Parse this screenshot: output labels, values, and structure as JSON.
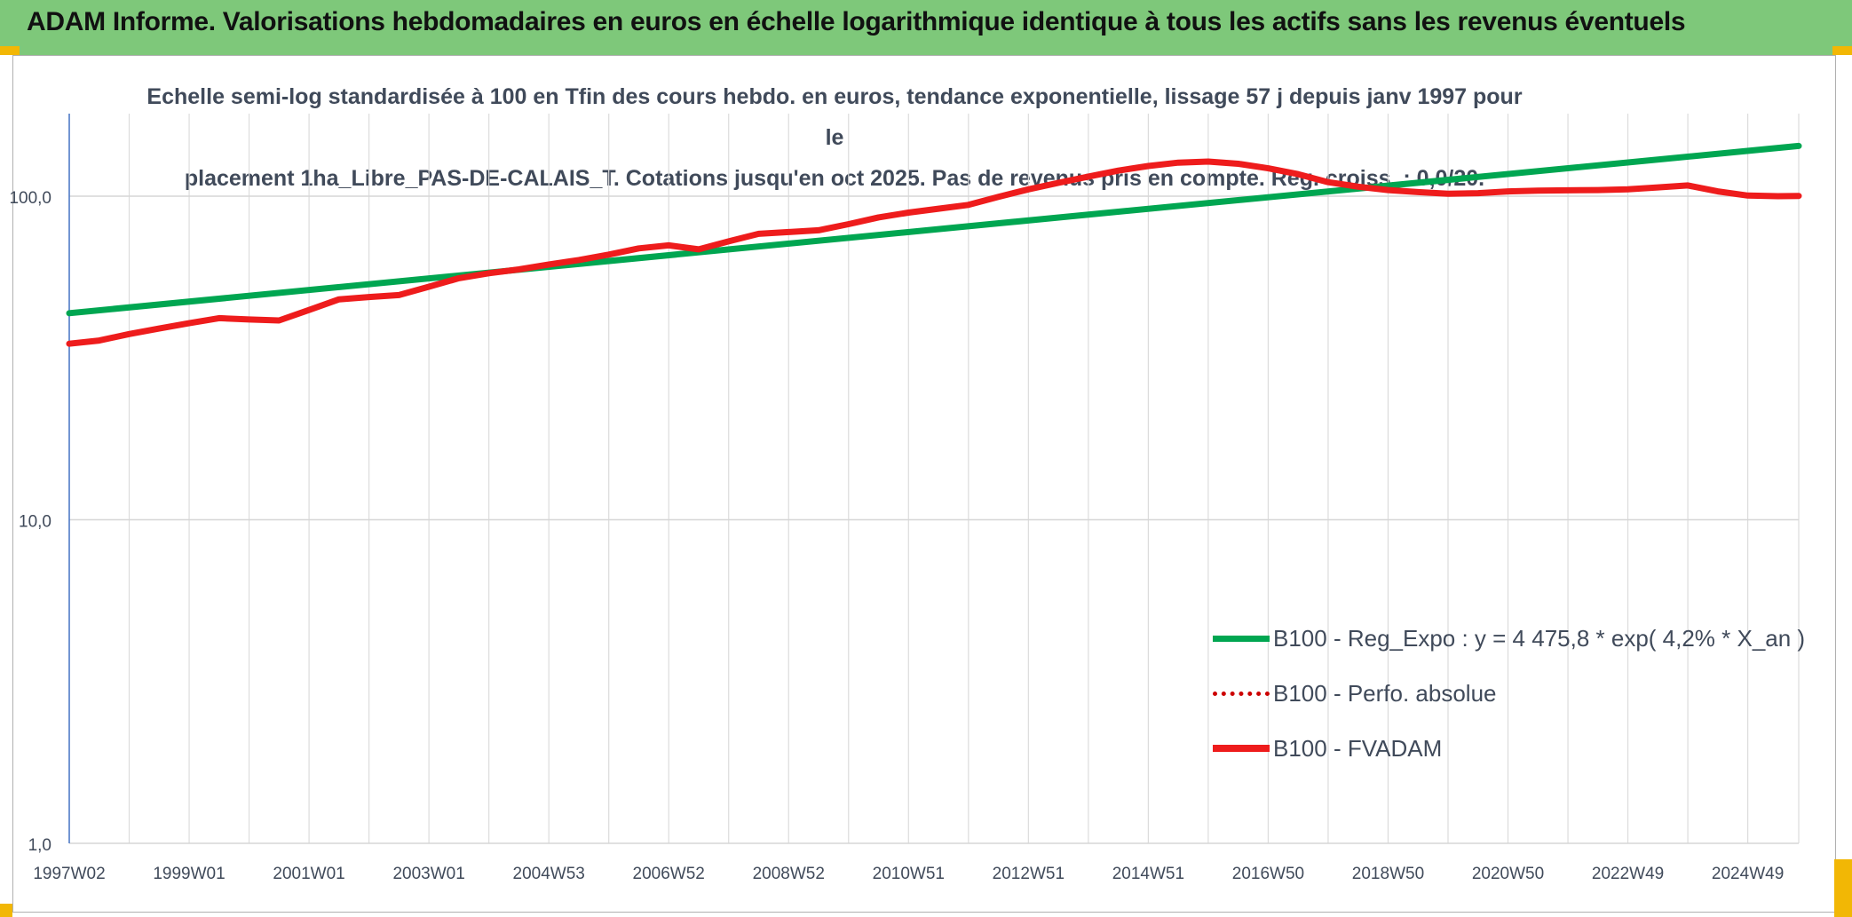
{
  "banner": {
    "title": "ADAM Informe. Valorisations hebdomadaires en euros en échelle logarithmique identique à tous les actifs sans les revenus éventuels"
  },
  "chart_data": {
    "type": "line",
    "title_line1": "Echelle semi-log standardisée à 100 en Tfin des cours hebdo. en euros, tendance exponentielle, lissage 57 j depuis janv 1997 pour le",
    "title_line2": "placement 1ha_Libre_PAS-DE-CALAIS_T. Cotations jusqu'en oct 2025. Pas de revenus pris en compte. Reg. croiss. : 0,0/20.",
    "y_scale": "log",
    "ylim": [
      1,
      180
    ],
    "y_ticks": [
      {
        "value": 1,
        "label": "1,0"
      },
      {
        "value": 10,
        "label": "10,0"
      },
      {
        "value": 100,
        "label": "100,0"
      }
    ],
    "x_range": [
      1997.0,
      2025.85
    ],
    "x_ticks": [
      {
        "value": 1997.0,
        "label": "1997W02"
      },
      {
        "value": 1999.0,
        "label": "1999W01"
      },
      {
        "value": 2001.0,
        "label": "2001W01"
      },
      {
        "value": 2003.0,
        "label": "2003W01"
      },
      {
        "value": 2005.0,
        "label": "2004W53"
      },
      {
        "value": 2007.0,
        "label": "2006W52"
      },
      {
        "value": 2009.0,
        "label": "2008W52"
      },
      {
        "value": 2011.0,
        "label": "2010W51"
      },
      {
        "value": 2013.0,
        "label": "2012W51"
      },
      {
        "value": 2015.0,
        "label": "2014W51"
      },
      {
        "value": 2017.0,
        "label": "2016W50"
      },
      {
        "value": 2019.0,
        "label": "2018W50"
      },
      {
        "value": 2021.0,
        "label": "2020W50"
      },
      {
        "value": 2023.0,
        "label": "2022W49"
      },
      {
        "value": 2025.0,
        "label": "2024W49"
      }
    ],
    "vertical_grid": true,
    "horizontal_grid": true,
    "legend_position": "bottom-right",
    "series": [
      {
        "name": "B100 - Reg_Expo : y = 4 475,8 * exp( 4,2% *  X_an )",
        "color": "#00a651",
        "style": "solid",
        "x": [
          1997.0,
          2025.85
        ],
        "y": [
          43.5,
          143
        ]
      },
      {
        "name": "B100 - Perfo. absolue",
        "color": "#cc0000",
        "style": "dotted",
        "x": [],
        "y": []
      },
      {
        "name": "B100 - FVADAM",
        "color": "#ee1c1c",
        "style": "solid",
        "x": [
          1997.0,
          1997.5,
          1998.0,
          1998.5,
          1999.0,
          1999.5,
          2000.0,
          2000.5,
          2001.0,
          2001.5,
          2002.0,
          2002.5,
          2003.0,
          2003.5,
          2004.0,
          2004.5,
          2005.0,
          2005.5,
          2006.0,
          2006.5,
          2007.0,
          2007.5,
          2008.0,
          2008.5,
          2009.0,
          2009.5,
          2010.0,
          2010.5,
          2011.0,
          2011.5,
          2012.0,
          2012.5,
          2013.0,
          2013.5,
          2014.0,
          2014.5,
          2015.0,
          2015.5,
          2016.0,
          2016.5,
          2017.0,
          2017.5,
          2018.0,
          2018.5,
          2019.0,
          2019.5,
          2020.0,
          2020.5,
          2021.0,
          2021.5,
          2022.0,
          2022.5,
          2023.0,
          2023.5,
          2024.0,
          2024.5,
          2025.0,
          2025.5,
          2025.85
        ],
        "y": [
          35.0,
          35.8,
          37.5,
          39.0,
          40.5,
          42.0,
          41.6,
          41.3,
          44.5,
          48.0,
          48.8,
          49.5,
          52.5,
          55.8,
          57.8,
          59.4,
          61.5,
          63.5,
          66.0,
          69.0,
          70.5,
          68.5,
          72.5,
          76.5,
          77.5,
          78.5,
          82.0,
          86.0,
          89.0,
          91.5,
          94.0,
          99.5,
          105.0,
          110.0,
          115.0,
          120.0,
          124.0,
          127.0,
          128.0,
          126.0,
          122.0,
          117.0,
          110.5,
          107.0,
          104.5,
          103.0,
          101.8,
          102.2,
          103.5,
          104.0,
          104.3,
          104.5,
          105.0,
          106.5,
          108.0,
          103.5,
          100.5,
          100.0,
          100.2
        ]
      }
    ]
  }
}
